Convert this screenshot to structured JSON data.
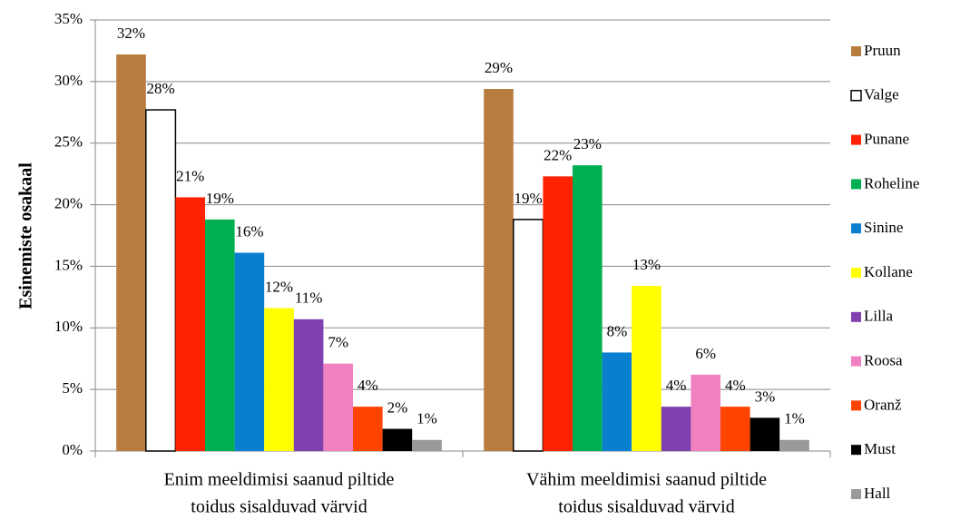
{
  "chart_data": {
    "type": "bar",
    "ylabel": "Esinemiste osakaal",
    "categories": [
      [
        "Enim meeldimisi saanud piltide",
        "toidus sisalduvad värvid"
      ],
      [
        "Vähim meeldimisi saanud piltide",
        "toidus sisalduvad värvid"
      ]
    ],
    "series": [
      {
        "name": "Pruun",
        "color": "#b87d3e",
        "values": [
          32.2,
          29.4
        ],
        "value_labels": [
          "32%",
          "29%"
        ]
      },
      {
        "name": "Valge",
        "color": "#ffffff",
        "values": [
          27.7,
          18.8
        ],
        "value_labels": [
          "28%",
          "19%"
        ]
      },
      {
        "name": "Punane",
        "color": "#ff2200",
        "values": [
          20.6,
          22.3
        ],
        "value_labels": [
          "21%",
          "22%"
        ]
      },
      {
        "name": "Roheline",
        "color": "#00b050",
        "values": [
          18.8,
          23.2
        ],
        "value_labels": [
          "19%",
          "23%"
        ]
      },
      {
        "name": "Sinine",
        "color": "#0a7fd0",
        "values": [
          16.1,
          8.0
        ],
        "value_labels": [
          "16%",
          "8%"
        ]
      },
      {
        "name": "Kollane",
        "color": "#ffff00",
        "values": [
          11.6,
          13.4
        ],
        "value_labels": [
          "12%",
          "13%"
        ]
      },
      {
        "name": "Lilla",
        "color": "#8040b0",
        "values": [
          10.7,
          3.6
        ],
        "value_labels": [
          "11%",
          "4%"
        ]
      },
      {
        "name": "Roosa",
        "color": "#f080c0",
        "values": [
          7.1,
          6.2
        ],
        "value_labels": [
          "7%",
          "6%"
        ]
      },
      {
        "name": "Oranž",
        "color": "#ff4400",
        "values": [
          3.6,
          3.6
        ],
        "value_labels": [
          "4%",
          "4%"
        ]
      },
      {
        "name": "Must",
        "color": "#000000",
        "values": [
          1.8,
          2.7
        ],
        "value_labels": [
          "2%",
          "3%"
        ]
      },
      {
        "name": "Hall",
        "color": "#999999",
        "values": [
          0.9,
          0.9
        ],
        "value_labels": [
          "1%",
          "1%"
        ]
      }
    ],
    "ylim": [
      0,
      35
    ],
    "yticks": [
      {
        "value": 0,
        "label": "0%"
      },
      {
        "value": 5,
        "label": "5%"
      },
      {
        "value": 10,
        "label": "10%"
      },
      {
        "value": 15,
        "label": "15%"
      },
      {
        "value": 20,
        "label": "20%"
      },
      {
        "value": 25,
        "label": "25%"
      },
      {
        "value": 30,
        "label": "30%"
      },
      {
        "value": 35,
        "label": "35%"
      }
    ],
    "grid": true,
    "legend": "right"
  }
}
